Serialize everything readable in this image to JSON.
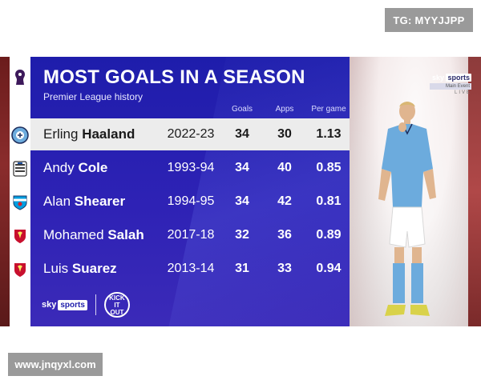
{
  "watermark_top": "TG: MYYJJPP",
  "watermark_bottom": "www.jnqyxl.com",
  "graphic": {
    "title": "MOST GOALS IN A SEASON",
    "subtitle": "Premier League history",
    "columns": {
      "goals": "Goals",
      "apps": "Apps",
      "per_game": "Per game"
    },
    "rows": [
      {
        "first": "Erling",
        "last": "Haaland",
        "season": "2022-23",
        "goals": "34",
        "apps": "30",
        "per_game": "1.13",
        "club_icon": "man-city-crest-icon"
      },
      {
        "first": "Andy",
        "last": "Cole",
        "season": "1993-94",
        "goals": "34",
        "apps": "40",
        "per_game": "0.85",
        "club_icon": "newcastle-crest-icon"
      },
      {
        "first": "Alan",
        "last": "Shearer",
        "season": "1994-95",
        "goals": "34",
        "apps": "42",
        "per_game": "0.81",
        "club_icon": "blackburn-crest-icon"
      },
      {
        "first": "Mohamed",
        "last": "Salah",
        "season": "2017-18",
        "goals": "32",
        "apps": "36",
        "per_game": "0.89",
        "club_icon": "liverpool-crest-icon"
      },
      {
        "first": "Luis",
        "last": "Suarez",
        "season": "2013-14",
        "goals": "31",
        "apps": "33",
        "per_game": "0.94",
        "club_icon": "liverpool-crest-icon"
      }
    ],
    "footer": {
      "sky_prefix": "sky",
      "sky_box": "sports",
      "kick_it_out": "KICK IT OUT"
    }
  },
  "broadcast_bug": {
    "sky": "sky",
    "sports": "sports",
    "channel": "Main Event",
    "live": "LIVE"
  },
  "colors": {
    "panel_blue": "#1e1dab",
    "highlight_row": "#ececec",
    "city_sky_blue": "#6cabdd"
  }
}
